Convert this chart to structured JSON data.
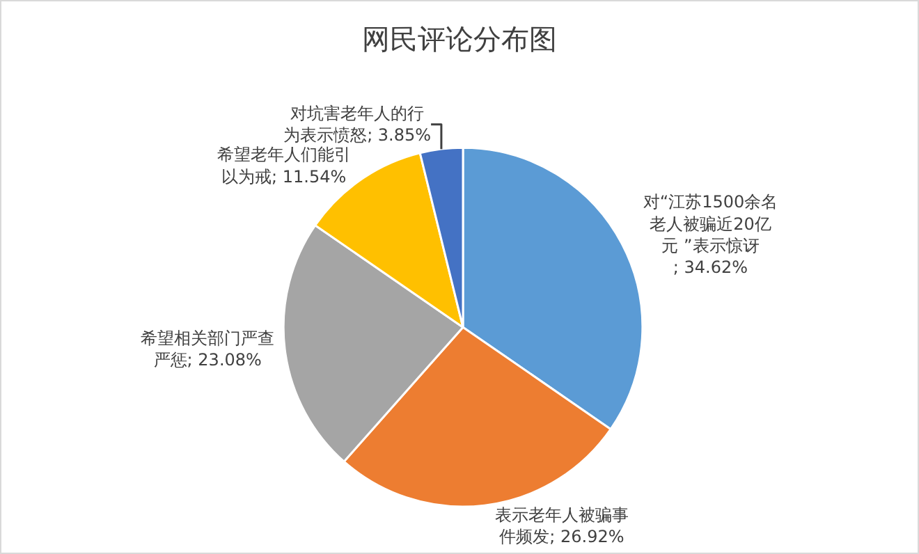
{
  "chart_data": {
    "type": "pie",
    "title": "网民评论分布图",
    "categories": [
      "对“江苏1500余名老人被骗近20亿元 ”表示惊讶",
      "表示老年人被骗事件频发",
      "希望相关部门严查严惩",
      "希望老年人们能引以为戒",
      "对坑害老年人的行为表示愤怒"
    ],
    "values": [
      34.62,
      26.92,
      23.08,
      11.54,
      3.85
    ],
    "colors": [
      "#5b9bd5",
      "#ed7d31",
      "#a5a5a5",
      "#ffc000",
      "#4472c4"
    ],
    "value_labels": [
      "; 34.62%",
      "; 26.92%",
      "; 23.08%",
      "; 11.54%",
      "; 3.85%"
    ],
    "legend": false
  }
}
